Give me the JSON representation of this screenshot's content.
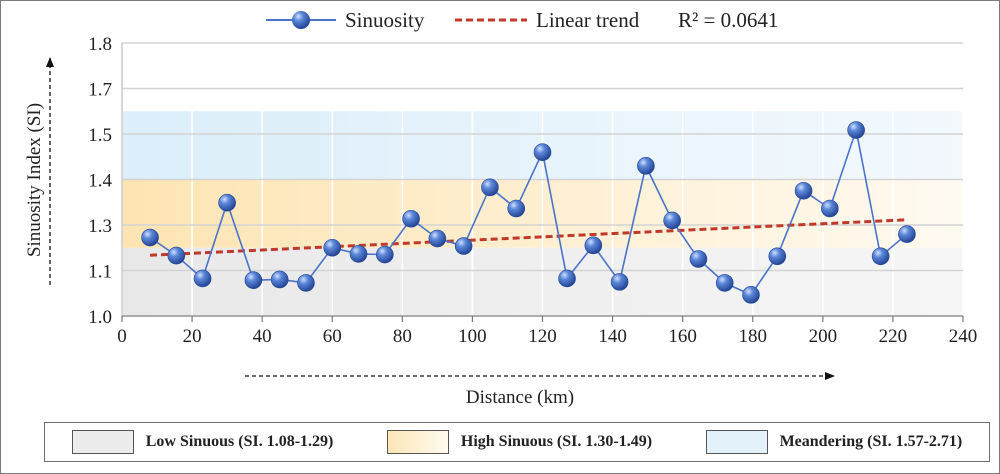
{
  "chart_data": {
    "type": "line",
    "xlabel": "Distance  (km)",
    "ylabel": "Sinuosity Index (SI)",
    "xlim": [
      0,
      240
    ],
    "ylim": [
      1.0,
      1.8
    ],
    "x_ticks": [
      "0",
      "20",
      "40",
      "60",
      "80",
      "100",
      "120",
      "140",
      "160",
      "180",
      "200",
      "220",
      "240"
    ],
    "y_ticks": [
      "1.0",
      "1.1",
      "1.3",
      "1.4",
      "1.5",
      "1.7",
      "1.8"
    ],
    "grid": true,
    "legend_top": {
      "series_label": "Sinuosity",
      "trend_label": "Linear trend",
      "r2_label": "R² = 0.0641"
    },
    "series": [
      {
        "name": "Sinuosity",
        "x": [
          8,
          15.5,
          23,
          30,
          37.5,
          45,
          52.5,
          60,
          67.5,
          75,
          82.5,
          90,
          97.5,
          105,
          112.5,
          120,
          127,
          134.5,
          142,
          149.5,
          157,
          164.5,
          172,
          179.5,
          187,
          194.5,
          202,
          209.5,
          216.5,
          224
        ],
        "y": [
          1.23,
          1.177,
          1.11,
          1.332,
          1.105,
          1.107,
          1.097,
          1.2,
          1.182,
          1.18,
          1.285,
          1.227,
          1.205,
          1.377,
          1.315,
          1.48,
          1.11,
          1.207,
          1.1,
          1.44,
          1.28,
          1.167,
          1.097,
          1.062,
          1.175,
          1.367,
          1.315,
          1.545,
          1.175,
          1.24
        ],
        "color": "#4a73c9"
      }
    ],
    "trend": {
      "x": [
        8,
        224
      ],
      "y": [
        1.178,
        1.282
      ],
      "color": "#c0392b"
    },
    "zones": [
      {
        "label": "Low Sinuous (SI. 1.08-1.29)",
        "from": 1.0,
        "to": 1.2,
        "color": "#ececec"
      },
      {
        "label": "High Sinuous (SI. 1.30-1.49)",
        "from": 1.2,
        "to": 1.4,
        "color": "#fde6b7"
      },
      {
        "label": "Meandering (SI. 1.57-2.71)",
        "from": 1.4,
        "to": 1.6,
        "color": "#e3f1fb"
      }
    ]
  }
}
